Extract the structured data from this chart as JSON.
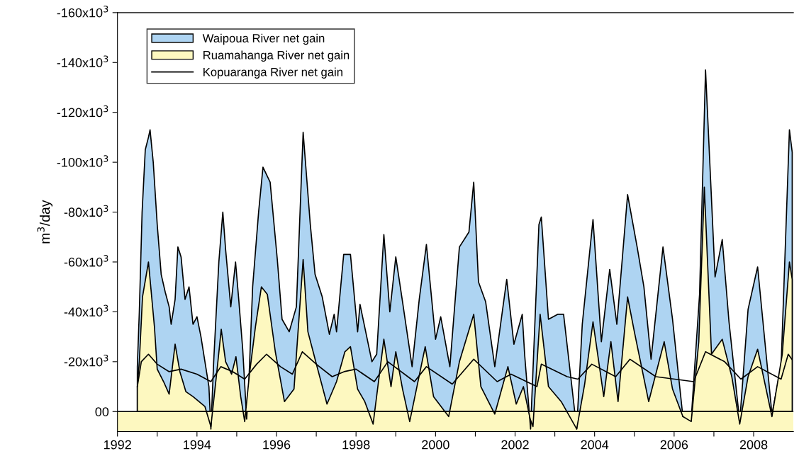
{
  "chart_data": {
    "type": "area",
    "ylabel": "m$^{3}$/day",
    "xlim": [
      1992,
      2009
    ],
    "xticks": [
      1992,
      {
        "value": 1993,
        "label": null
      },
      1994,
      {
        "value": 1995,
        "label": null
      },
      1996,
      {
        "value": 1997,
        "label": null
      },
      1998,
      {
        "value": 1999,
        "label": null
      },
      2000,
      {
        "value": 2001,
        "label": null
      },
      2002,
      {
        "value": 2003,
        "label": null
      },
      2004,
      {
        "value": 2005,
        "label": null
      },
      2006,
      {
        "value": 2007,
        "label": null
      },
      2008
    ],
    "ylim": [
      8000,
      -160000
    ],
    "yticks": [
      {
        "value": -160000,
        "label": "-160x10$^{3}$"
      },
      {
        "value": -140000,
        "label": "-140x10$^{3}$"
      },
      {
        "value": -120000,
        "label": "-120x10$^{3}$"
      },
      {
        "value": -100000,
        "label": "-100x10$^{3}$"
      },
      {
        "value": -80000,
        "label": "-80x10$^{3}$"
      },
      {
        "value": -60000,
        "label": "-60x10$^{3}$"
      },
      {
        "value": -40000,
        "label": "-40x10$^{3}$"
      },
      {
        "value": -20000,
        "label": "-20x10$^{3}$"
      },
      {
        "value": 0,
        "label": "00"
      }
    ],
    "ref_lines": [
      {
        "axis": "y",
        "value": 0,
        "color": "#000000"
      }
    ],
    "bands": [
      {
        "axis": "y",
        "from": 0,
        "to": 8000,
        "color": "#fdf8c0"
      }
    ],
    "legend": "top left",
    "grid": false,
    "series": [
      {
        "name": "Waipoua River net gain",
        "color": "#aed4f2",
        "x": [
          1992.5,
          1992.55,
          1992.62,
          1992.7,
          1992.78,
          1992.82,
          1992.9,
          1993.0,
          1993.1,
          1993.2,
          1993.3,
          1993.35,
          1993.45,
          1993.52,
          1993.6,
          1993.7,
          1993.8,
          1993.9,
          1994.0,
          1994.1,
          1994.2,
          1994.3,
          1994.35,
          1994.42,
          1994.55,
          1994.65,
          1994.72,
          1994.85,
          1994.97,
          1995.05,
          1995.15,
          1995.25,
          1995.3,
          1995.4,
          1995.55,
          1995.66,
          1995.84,
          1996.02,
          1996.14,
          1996.32,
          1996.5,
          1996.67,
          1996.85,
          1996.97,
          1997.15,
          1997.33,
          1997.45,
          1997.51,
          1997.69,
          1997.86,
          1998.04,
          1998.1,
          1998.4,
          1998.52,
          1998.7,
          1998.85,
          1999.0,
          1999.17,
          1999.41,
          1999.59,
          1999.77,
          2000.0,
          2000.13,
          2000.36,
          2000.6,
          2000.84,
          2000.96,
          2001.08,
          2001.26,
          2001.49,
          2001.79,
          2001.97,
          2002.18,
          2002.24,
          2002.39,
          2002.6,
          2002.66,
          2002.84,
          2003.07,
          2003.22,
          2003.4,
          2003.55,
          2003.69,
          2003.96,
          2004.17,
          2004.38,
          2004.56,
          2004.83,
          2005.07,
          2005.24,
          2005.42,
          2005.72,
          2005.96,
          2006.22,
          2006.43,
          2006.64,
          2006.79,
          2007.03,
          2007.21,
          2007.38,
          2007.65,
          2007.86,
          2008.1,
          2008.46,
          2008.69,
          2008.9,
          2008.97
        ],
        "values": [
          -18000,
          -40000,
          -80000,
          -105000,
          -110000,
          -113000,
          -100000,
          -75000,
          -55000,
          -48000,
          -42000,
          -35000,
          -45000,
          -66000,
          -62000,
          -45000,
          -50000,
          -35000,
          -38000,
          -30000,
          -20000,
          -10000,
          7000,
          -20000,
          -60000,
          -80000,
          -65000,
          -42000,
          -60000,
          -45000,
          -25000,
          3000,
          -10000,
          -50000,
          -80000,
          -98000,
          -92000,
          -61000,
          -37000,
          -32000,
          -42000,
          -112000,
          -75000,
          -55000,
          -46000,
          -31000,
          -39000,
          -32000,
          -63000,
          -63000,
          -32000,
          -43000,
          -20000,
          -23000,
          -71000,
          -40000,
          -62000,
          -44000,
          -18000,
          -45000,
          -67000,
          -29000,
          -38000,
          -18000,
          -66000,
          -72000,
          -92000,
          -52000,
          -44000,
          -18000,
          -53000,
          -27000,
          -39000,
          -23000,
          7000,
          -75000,
          -78000,
          -37000,
          -39000,
          -39000,
          -14000,
          7000,
          -35000,
          -77000,
          -28000,
          -57000,
          -35000,
          -87000,
          -66000,
          -50000,
          -21000,
          -66000,
          -37000,
          2000,
          3000,
          -47000,
          -137000,
          -54000,
          -69000,
          -36000,
          4000,
          -41000,
          -58000,
          1000,
          -18000,
          -113000,
          -104000
        ]
      },
      {
        "name": "Ruamahanga River net gain",
        "color": "#fdf8c0",
        "x": [
          1992.5,
          1992.55,
          1992.63,
          1992.78,
          1992.93,
          1993.0,
          1993.16,
          1993.3,
          1993.45,
          1993.57,
          1993.72,
          1993.9,
          1994.2,
          1994.35,
          1994.5,
          1994.61,
          1994.72,
          1994.87,
          1994.98,
          1995.1,
          1995.2,
          1995.32,
          1995.47,
          1995.62,
          1995.77,
          1995.97,
          1996.2,
          1996.44,
          1996.67,
          1996.79,
          1996.97,
          1997.27,
          1997.51,
          1997.72,
          1997.86,
          1998.04,
          1998.22,
          1998.43,
          1998.7,
          1998.88,
          1999.0,
          1999.17,
          1999.35,
          1999.74,
          1999.95,
          2000.33,
          2000.6,
          2000.96,
          2001.14,
          2001.49,
          2001.82,
          2002.03,
          2002.21,
          2002.38,
          2002.45,
          2002.63,
          2002.84,
          2003.16,
          2003.55,
          2003.75,
          2003.96,
          2004.23,
          2004.41,
          2004.59,
          2004.83,
          2005.0,
          2005.36,
          2005.75,
          2005.96,
          2006.22,
          2006.43,
          2006.62,
          2006.76,
          2006.94,
          2007.21,
          2007.45,
          2007.65,
          2007.86,
          2008.1,
          2008.46,
          2008.72,
          2008.9,
          2008.97
        ],
        "values": [
          -10000,
          -20000,
          -46000,
          -60000,
          -34000,
          -17000,
          -12000,
          -7000,
          -27000,
          -16000,
          -8000,
          -6000,
          -2000,
          6000,
          -16000,
          -33000,
          -20000,
          -15000,
          -22000,
          -6000,
          4000,
          -15000,
          -34000,
          -50000,
          -47000,
          -24000,
          -4000,
          -9000,
          -61000,
          -32000,
          -21000,
          -3000,
          -12000,
          -24000,
          -26000,
          -9000,
          -4000,
          5000,
          -29000,
          -10000,
          -24000,
          -9000,
          4000,
          -26000,
          -6000,
          2000,
          -20000,
          -39000,
          -10000,
          1000,
          -18000,
          -3000,
          -10000,
          3000,
          6000,
          -39000,
          -10000,
          -4000,
          7000,
          -11000,
          -36000,
          -6000,
          -28000,
          -4000,
          -46000,
          -32000,
          -4000,
          -28000,
          -9000,
          2000,
          4000,
          -28000,
          -90000,
          -23000,
          -29000,
          -14000,
          5000,
          -14000,
          -25000,
          2000,
          -23000,
          -60000,
          -53000
        ]
      },
      {
        "name": "Kopuaranga River net gain",
        "type": "line",
        "color": "#000000",
        "x": [
          1992.5,
          1992.6,
          1992.78,
          1993.0,
          1993.3,
          1993.6,
          1994.0,
          1994.35,
          1994.6,
          1994.9,
          1995.2,
          1995.5,
          1995.75,
          1996.1,
          1996.4,
          1996.65,
          1997.0,
          1997.4,
          1997.7,
          1998.0,
          1998.46,
          1998.8,
          1999.47,
          1999.77,
          2000.42,
          2000.96,
          2001.55,
          2001.9,
          2002.55,
          2002.66,
          2003.31,
          2003.58,
          2003.93,
          2004.53,
          2004.89,
          2005.54,
          2006.49,
          2006.79,
          2007.27,
          2007.68,
          2008.1,
          2008.69,
          2008.87,
          2008.96
        ],
        "values": [
          -10000,
          -20000,
          -23000,
          -19000,
          -16000,
          -17000,
          -15000,
          -12000,
          -18000,
          -16000,
          -13000,
          -19000,
          -23000,
          -18000,
          -15000,
          -24000,
          -19000,
          -14000,
          -16000,
          -17000,
          -12000,
          -20000,
          -12000,
          -18000,
          -11000,
          -21000,
          -12000,
          -15000,
          -10000,
          -19000,
          -14000,
          -13000,
          -19000,
          -14000,
          -21000,
          -14000,
          -12000,
          -24000,
          -20000,
          -13000,
          -18000,
          -13000,
          -23000,
          -21000
        ]
      }
    ]
  }
}
